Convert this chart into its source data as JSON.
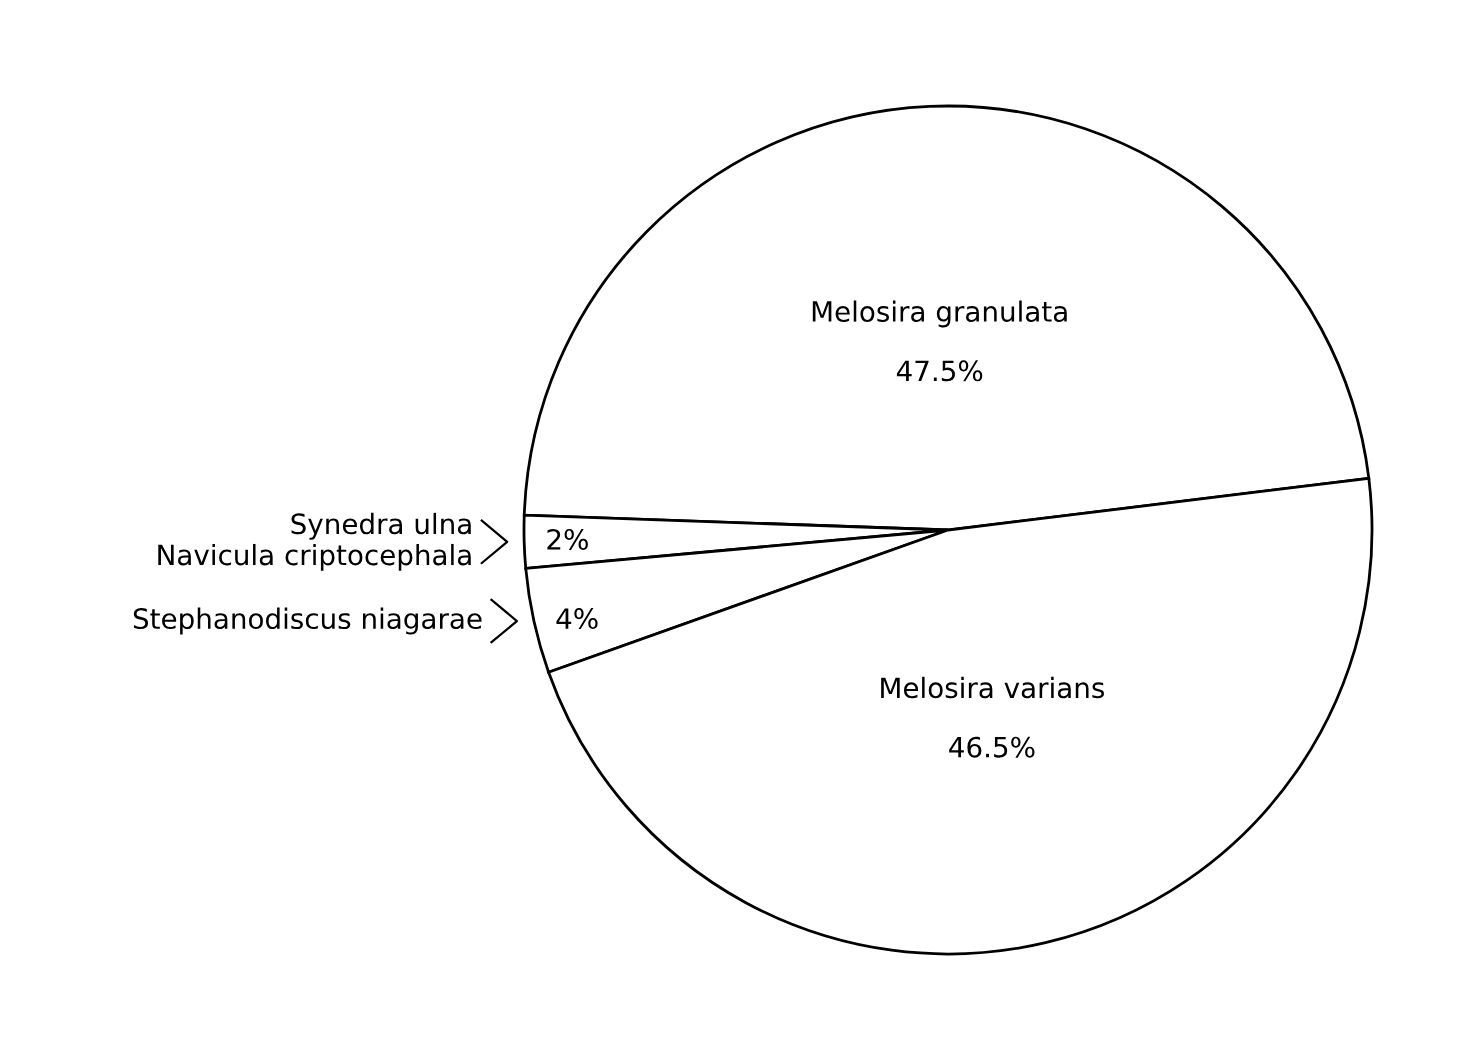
{
  "chart_data": {
    "type": "pie",
    "categories": [
      "Melosira granulata",
      "Synedra ulna\nNavicula criptocephala",
      "Stephanodiscus niagarae",
      "Melosira varians"
    ],
    "values": [
      47.5,
      2,
      4,
      46.5
    ],
    "value_labels": [
      "47.5%",
      "2%",
      "4%",
      "46.5%"
    ],
    "colors": [
      "#ffffff",
      "#ffffff",
      "#ffffff",
      "#ffffff"
    ],
    "legend": false
  }
}
